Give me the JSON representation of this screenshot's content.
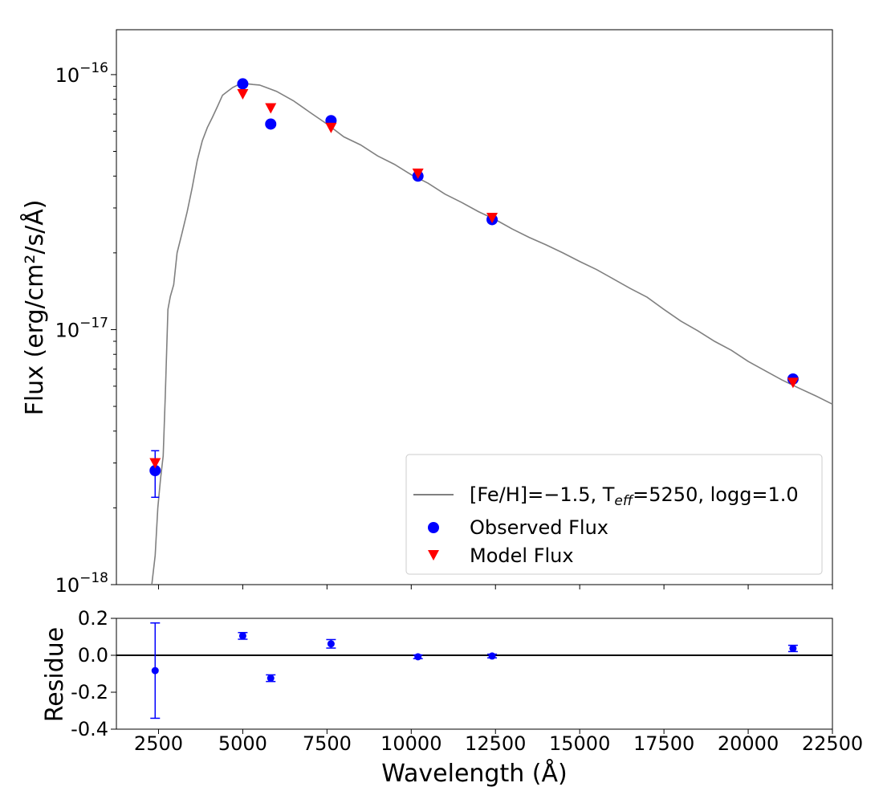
{
  "chart_data": [
    {
      "type": "line+scatter",
      "yscale": "log",
      "xlim": [
        1250,
        22500
      ],
      "ylim": [
        1e-18,
        1.5e-16
      ],
      "ylabel": "Flux (erg/cm²/s/Å)",
      "yticks": [
        {
          "value": 1e-16,
          "base": "10",
          "exp": "−16"
        },
        {
          "value": 1e-17,
          "base": "10",
          "exp": "−17"
        },
        {
          "value": 1e-18,
          "base": "10",
          "exp": "−18"
        }
      ],
      "model_spectrum": {
        "name": "[Fe/H]=−1.5, T_eff=5250, logg=1.0",
        "legend_prefix": "[Fe/H]=−1.5, T",
        "legend_sub": "eff",
        "legend_suffix": "=5250, logg=1.0",
        "color": "#808080",
        "x": [
          2300,
          2400,
          2480,
          2560,
          2640,
          2700,
          2780,
          2850,
          2950,
          3050,
          3200,
          3350,
          3500,
          3650,
          3800,
          3950,
          4100,
          4250,
          4400,
          4550,
          4700,
          4850,
          5000,
          5150,
          5300,
          5500,
          5700,
          6000,
          6500,
          7000,
          7500,
          8000,
          8500,
          9000,
          9500,
          10000,
          10500,
          11000,
          11500,
          12000,
          12500,
          13000,
          13500,
          14000,
          14500,
          15000,
          15500,
          16000,
          16500,
          17000,
          17500,
          18000,
          18500,
          19000,
          19500,
          20000,
          20500,
          21000,
          21500,
          22000,
          22500
        ],
        "y": [
          1e-18,
          1.3e-18,
          2e-18,
          2.6e-18,
          3.2e-18,
          5.5e-18,
          1.2e-17,
          1.35e-17,
          1.5e-17,
          2e-17,
          2.4e-17,
          2.9e-17,
          3.6e-17,
          4.6e-17,
          5.5e-17,
          6.2e-17,
          6.8e-17,
          7.5e-17,
          8.3e-17,
          8.6e-17,
          8.9e-17,
          9.1e-17,
          9.2e-17,
          9.2e-17,
          9.15e-17,
          9.1e-17,
          8.9e-17,
          8.6e-17,
          7.9e-17,
          7.1e-17,
          6.4e-17,
          5.7e-17,
          5.3e-17,
          4.8e-17,
          4.45e-17,
          4.05e-17,
          3.75e-17,
          3.4e-17,
          3.15e-17,
          2.9e-17,
          2.7e-17,
          2.48e-17,
          2.3e-17,
          2.15e-17,
          2e-17,
          1.85e-17,
          1.72e-17,
          1.58e-17,
          1.45e-17,
          1.34e-17,
          1.2e-17,
          1.08e-17,
          9.9e-18,
          9e-18,
          8.3e-18,
          7.5e-18,
          6.9e-18,
          6.35e-18,
          5.9e-18,
          5.5e-18,
          5.1e-18
        ]
      },
      "series": [
        {
          "name": "Observed Flux",
          "marker": "circle",
          "color": "#0000ff",
          "x": [
            2400,
            5000,
            5830,
            7620,
            10200,
            12400,
            21330
          ],
          "y": [
            2.8e-18,
            9.2e-17,
            6.4e-17,
            6.6e-17,
            4e-17,
            2.7e-17,
            6.4e-18
          ],
          "yerr_low": [
            2.2e-18,
            null,
            null,
            null,
            null,
            null,
            null
          ],
          "yerr_high": [
            3.35e-18,
            null,
            null,
            null,
            null,
            null,
            null
          ]
        },
        {
          "name": "Model Flux",
          "marker": "triangle-down",
          "color": "#ff0000",
          "x": [
            2400,
            5000,
            5830,
            7620,
            10200,
            12400,
            21330
          ],
          "y": [
            3e-18,
            8.4e-17,
            7.4e-17,
            6.2e-17,
            4.1e-17,
            2.75e-17,
            6.2e-18
          ]
        }
      ],
      "legend_location": "lower-right"
    },
    {
      "type": "scatter-errorbar",
      "xlim": [
        1250,
        22500
      ],
      "ylim": [
        -0.4,
        0.2
      ],
      "xlabel": "Wavelength (Å)",
      "ylabel": "Residue",
      "xticks": [
        "2500",
        "5000",
        "7500",
        "10000",
        "12500",
        "15000",
        "17500",
        "20000",
        "22500"
      ],
      "yticks": [
        "0.2",
        "0.0",
        "-0.2",
        "-0.4"
      ],
      "reference_line": 0.0,
      "series": [
        {
          "name": "Residue",
          "color": "#0000ff",
          "x": [
            2400,
            5000,
            5830,
            7620,
            10200,
            12400,
            21330
          ],
          "y": [
            -0.083,
            0.105,
            -0.124,
            0.062,
            -0.008,
            -0.004,
            0.037
          ],
          "yerr": [
            0.258,
            0.018,
            0.018,
            0.023,
            0.01,
            0.01,
            0.017
          ]
        }
      ]
    }
  ]
}
